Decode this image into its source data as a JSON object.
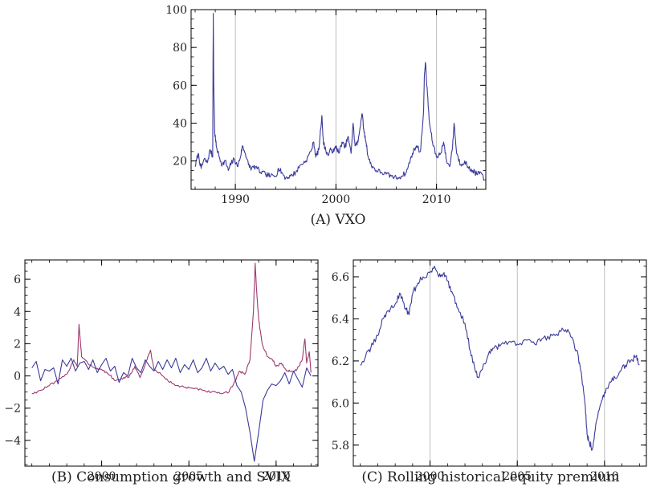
{
  "chart_data": [
    {
      "id": "A",
      "type": "line",
      "caption": "(A) VXO",
      "xlim": [
        1985.6,
        2014.9
      ],
      "ylim": [
        5,
        100
      ],
      "xticks": [
        1990,
        2000,
        2010
      ],
      "xtick_labels": [
        "1990",
        "2000",
        "2010"
      ],
      "yticks": [
        20,
        40,
        60,
        80,
        100
      ],
      "ytick_labels": [
        "20",
        "40",
        "60",
        "80",
        "100"
      ],
      "vertical_gridlines": [
        1990,
        2000,
        2010
      ],
      "legend": "none",
      "series": [
        {
          "color": "#3a3a9a",
          "x": [
            1986.0,
            1986.3,
            1986.6,
            1986.9,
            1987.2,
            1987.5,
            1987.75,
            1987.8,
            1987.85,
            1987.95,
            1988.1,
            1988.4,
            1988.7,
            1989.0,
            1989.3,
            1989.6,
            1989.9,
            1990.2,
            1990.5,
            1990.7,
            1991.0,
            1991.3,
            1991.6,
            1992.0,
            1992.5,
            1993.0,
            1993.5,
            1994.0,
            1994.3,
            1994.6,
            1995.0,
            1995.5,
            1996.0,
            1996.5,
            1997.0,
            1997.5,
            1997.8,
            1998.0,
            1998.3,
            1998.6,
            1998.75,
            1998.9,
            1999.2,
            1999.5,
            1999.8,
            2000.0,
            2000.3,
            2000.6,
            2000.9,
            2001.2,
            2001.5,
            2001.7,
            2001.9,
            2002.2,
            2002.5,
            2002.6,
            2002.8,
            2003.0,
            2003.2,
            2003.5,
            2004.0,
            2004.5,
            2005.0,
            2005.5,
            2006.0,
            2006.5,
            2007.0,
            2007.3,
            2007.6,
            2008.0,
            2008.4,
            2008.7,
            2008.8,
            2008.9,
            2009.1,
            2009.3,
            2009.6,
            2010.0,
            2010.4,
            2010.7,
            2011.0,
            2011.3,
            2011.6,
            2011.75,
            2012.0,
            2012.4,
            2012.8,
            2013.2,
            2013.6,
            2014.0,
            2014.4,
            2014.7
          ],
          "y": [
            17,
            24,
            16,
            21,
            19,
            26,
            22,
            98,
            60,
            35,
            28,
            22,
            18,
            20,
            15,
            19,
            21,
            17,
            22,
            28,
            24,
            18,
            16,
            17,
            14,
            13,
            12,
            12,
            16,
            14,
            11,
            12,
            14,
            18,
            20,
            25,
            30,
            22,
            26,
            44,
            30,
            27,
            23,
            26,
            25,
            28,
            24,
            30,
            27,
            33,
            24,
            40,
            28,
            30,
            42,
            45,
            35,
            30,
            22,
            18,
            15,
            14,
            13,
            12,
            11,
            12,
            14,
            19,
            24,
            28,
            25,
            45,
            66,
            72,
            55,
            40,
            30,
            22,
            24,
            30,
            20,
            17,
            28,
            40,
            24,
            18,
            20,
            16,
            15,
            13,
            14,
            10
          ]
        }
      ]
    },
    {
      "id": "B",
      "type": "line",
      "caption": "(B) Consumption growth and SVIX",
      "xlim": [
        1995.6,
        2012.4
      ],
      "ylim": [
        -5.6,
        7.2
      ],
      "xticks": [
        2000,
        2005,
        2010
      ],
      "xtick_labels": [
        "2000",
        "2005",
        "2010"
      ],
      "yticks": [
        -4,
        -2,
        0,
        2,
        4,
        6
      ],
      "ytick_labels": [
        "−4",
        "−2",
        "0",
        "2",
        "4",
        "6"
      ],
      "vertical_gridlines": [],
      "legend": "none",
      "series": [
        {
          "color": "#9e3a6e",
          "x": [
            1996.0,
            1996.5,
            1997.0,
            1997.5,
            1998.0,
            1998.4,
            1998.6,
            1998.7,
            1998.85,
            1999.2,
            1999.6,
            2000.0,
            2000.4,
            2000.8,
            2001.2,
            2001.6,
            2001.9,
            2002.2,
            2002.6,
            2002.8,
            2003.0,
            2003.4,
            2003.8,
            2004.3,
            2004.8,
            2005.3,
            2005.8,
            2006.3,
            2006.8,
            2007.3,
            2007.6,
            2007.9,
            2008.2,
            2008.5,
            2008.7,
            2008.8,
            2008.9,
            2009.0,
            2009.2,
            2009.5,
            2009.8,
            2010.0,
            2010.3,
            2010.6,
            2010.9,
            2011.2,
            2011.5,
            2011.65,
            2011.75,
            2011.9,
            2012.0
          ],
          "y": [
            -1.1,
            -0.9,
            -0.6,
            -0.3,
            0.1,
            1.0,
            0.6,
            3.2,
            1.2,
            0.8,
            0.5,
            0.4,
            0.1,
            -0.3,
            -0.2,
            0.0,
            0.6,
            -0.1,
            1.0,
            1.6,
            0.4,
            0.1,
            -0.3,
            -0.6,
            -0.7,
            -0.8,
            -0.9,
            -1.0,
            -1.1,
            -1.0,
            -0.4,
            0.3,
            0.1,
            1.0,
            4.0,
            7.0,
            5.0,
            3.5,
            2.0,
            1.2,
            1.0,
            0.6,
            0.8,
            0.3,
            0.3,
            0.4,
            1.0,
            2.3,
            0.8,
            1.5,
            0.2
          ]
        },
        {
          "color": "#3a3a9a",
          "x": [
            1996.0,
            1996.25,
            1996.5,
            1996.75,
            1997.0,
            1997.25,
            1997.5,
            1997.75,
            1998.0,
            1998.25,
            1998.5,
            1998.75,
            1999.0,
            1999.25,
            1999.5,
            1999.75,
            2000.0,
            2000.25,
            2000.5,
            2000.75,
            2001.0,
            2001.25,
            2001.5,
            2001.75,
            2002.0,
            2002.25,
            2002.5,
            2002.75,
            2003.0,
            2003.25,
            2003.5,
            2003.75,
            2004.0,
            2004.25,
            2004.5,
            2004.75,
            2005.0,
            2005.25,
            2005.5,
            2005.75,
            2006.0,
            2006.25,
            2006.5,
            2006.75,
            2007.0,
            2007.25,
            2007.5,
            2007.75,
            2008.0,
            2008.25,
            2008.5,
            2008.75,
            2009.0,
            2009.25,
            2009.5,
            2009.75,
            2010.0,
            2010.25,
            2010.5,
            2010.75,
            2011.0,
            2011.25,
            2011.5,
            2011.75,
            2012.0
          ],
          "y": [
            0.5,
            0.9,
            -0.3,
            0.4,
            0.3,
            0.5,
            -0.5,
            1.0,
            0.6,
            1.1,
            0.3,
            0.8,
            0.9,
            0.4,
            1.0,
            0.2,
            0.7,
            1.1,
            0.3,
            0.6,
            -0.4,
            0.2,
            0.0,
            1.1,
            0.5,
            0.2,
            1.0,
            0.6,
            0.3,
            0.9,
            0.4,
            1.0,
            0.5,
            1.1,
            0.2,
            0.7,
            0.4,
            1.0,
            0.2,
            0.5,
            1.1,
            0.3,
            0.8,
            0.4,
            0.6,
            0.1,
            0.4,
            -0.6,
            -1.0,
            -2.0,
            -3.5,
            -5.3,
            -3.5,
            -1.5,
            -0.9,
            -0.5,
            -0.6,
            -0.3,
            0.2,
            -0.5,
            0.3,
            -0.2,
            -0.7,
            0.5,
            0.0
          ]
        }
      ]
    },
    {
      "id": "C",
      "type": "line",
      "caption": "(C) Rolling historical equity premium",
      "xlim": [
        1995.6,
        2012.4
      ],
      "ylim": [
        5.7,
        6.68
      ],
      "xticks": [
        2000,
        2005,
        2010
      ],
      "xtick_labels": [
        "2000",
        "2005",
        "2010"
      ],
      "yticks": [
        5.8,
        6.0,
        6.2,
        6.4,
        6.6
      ],
      "ytick_labels": [
        "5.8",
        "6.0",
        "6.2",
        "6.4",
        "6.6"
      ],
      "vertical_gridlines": [
        2000,
        2005,
        2010
      ],
      "legend": "none",
      "series": [
        {
          "color": "#3a3a9a",
          "x": [
            1996.0,
            1996.3,
            1996.6,
            1997.0,
            1997.3,
            1997.6,
            1998.0,
            1998.3,
            1998.6,
            1998.8,
            1999.0,
            1999.3,
            1999.6,
            2000.0,
            2000.3,
            2000.6,
            2000.8,
            2001.0,
            2001.3,
            2001.6,
            2002.0,
            2002.3,
            2002.6,
            2002.8,
            2003.0,
            2003.3,
            2003.6,
            2004.0,
            2004.5,
            2005.0,
            2005.5,
            2006.0,
            2006.5,
            2007.0,
            2007.5,
            2007.9,
            2008.2,
            2008.5,
            2008.7,
            2008.9,
            2009.0,
            2009.1,
            2009.3,
            2009.5,
            2009.8,
            2010.0,
            2010.3,
            2010.6,
            2010.9,
            2011.2,
            2011.5,
            2011.8,
            2012.0
          ],
          "y": [
            6.18,
            6.22,
            6.26,
            6.32,
            6.4,
            6.44,
            6.47,
            6.52,
            6.45,
            6.42,
            6.52,
            6.57,
            6.6,
            6.62,
            6.64,
            6.6,
            6.62,
            6.58,
            6.52,
            6.45,
            6.38,
            6.25,
            6.15,
            6.12,
            6.16,
            6.22,
            6.26,
            6.27,
            6.29,
            6.28,
            6.3,
            6.28,
            6.31,
            6.32,
            6.34,
            6.35,
            6.3,
            6.22,
            6.12,
            5.98,
            5.85,
            5.82,
            5.78,
            5.9,
            6.0,
            6.05,
            6.1,
            6.12,
            6.15,
            6.18,
            6.2,
            6.22,
            6.18
          ]
        }
      ]
    }
  ]
}
